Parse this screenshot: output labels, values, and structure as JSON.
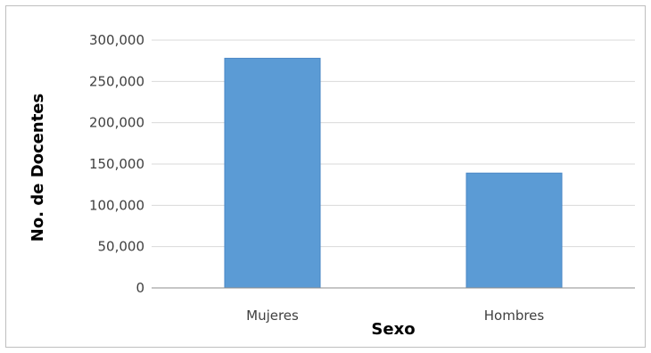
{
  "chart_data": {
    "type": "bar",
    "categories": [
      "Mujeres",
      "Hombres"
    ],
    "values": [
      278000,
      139000
    ],
    "xlabel": "Sexo",
    "ylabel": "No. de Docentes",
    "ylim": [
      0,
      300000
    ],
    "yticks": [
      "0",
      "50,000",
      "100,000",
      "150,000",
      "200,000",
      "250,000",
      "300,000"
    ],
    "grid": true,
    "legend": "none",
    "colors": {
      "bar": "#5b9bd5",
      "bar_edge": "#4a86c5",
      "grid": "#d9d9d9",
      "axis": "#8c8c8c"
    }
  }
}
